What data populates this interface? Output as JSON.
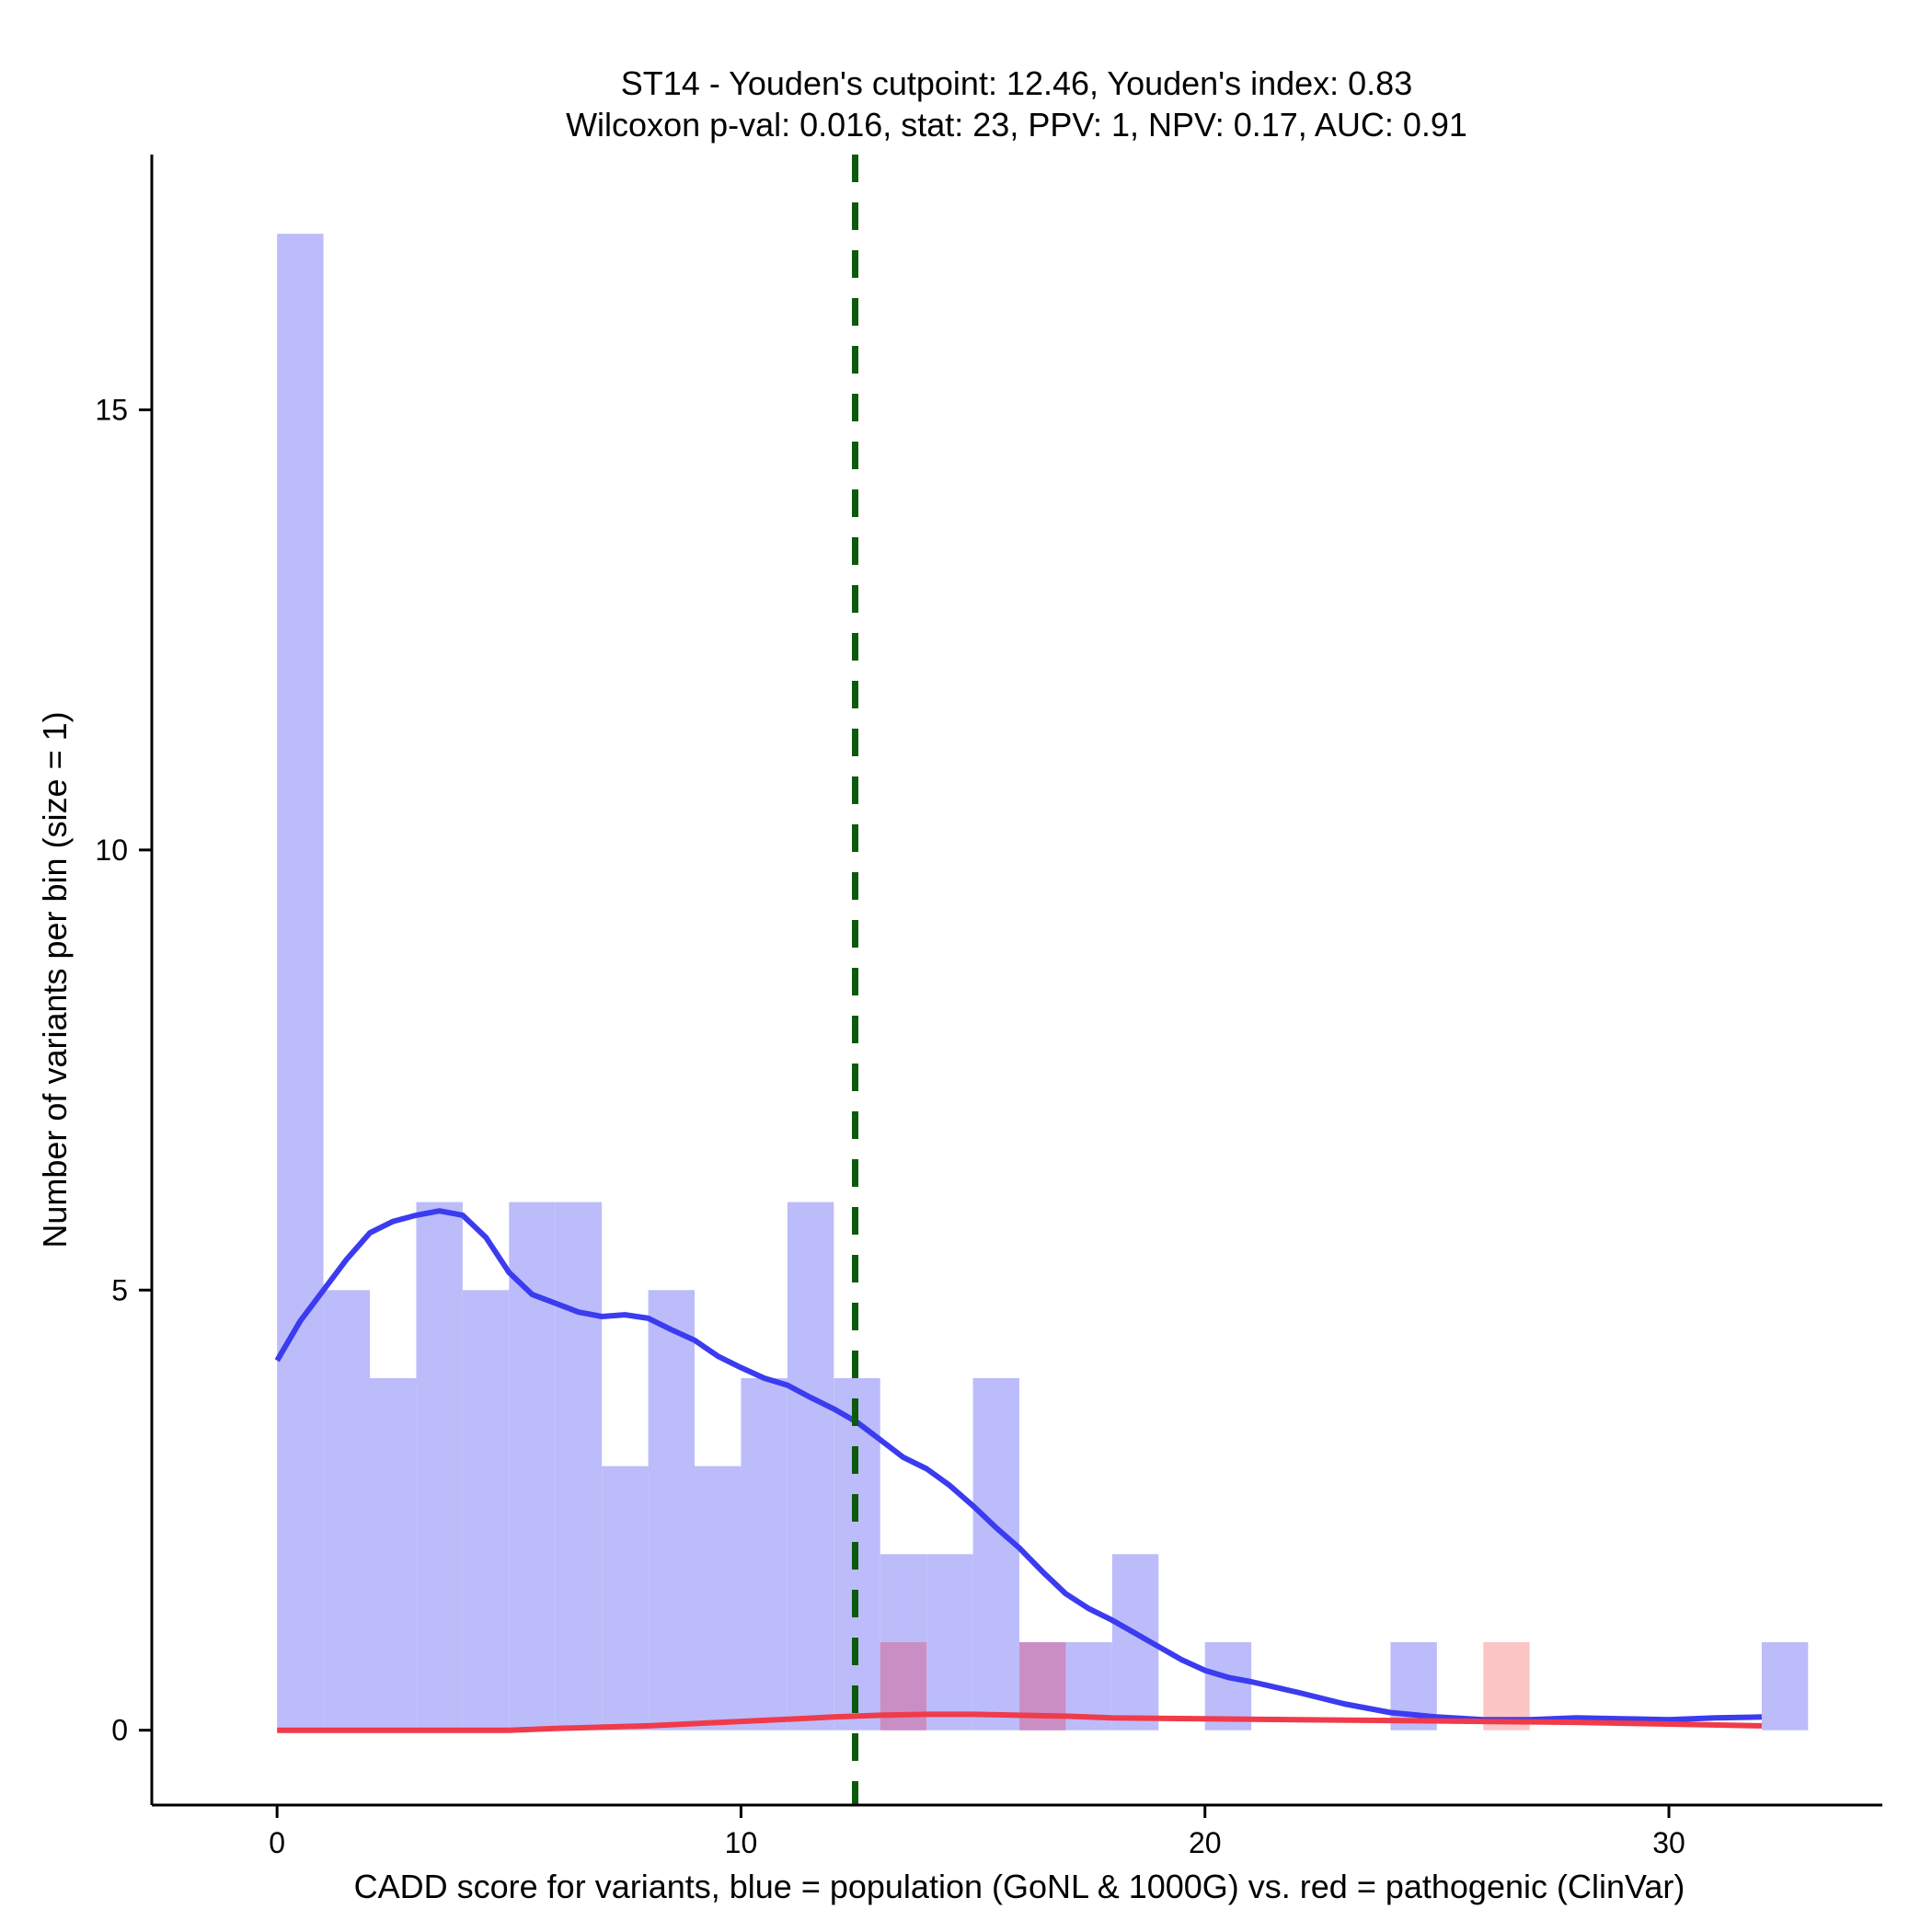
{
  "chart_data": {
    "type": "histogram",
    "title_line1": "ST14 - Youden's cutpoint: 12.46, Youden's index: 0.83",
    "title_line2": "Wilcoxon p-val: 0.016, stat: 23, PPV: 1, NPV: 0.17, AUC: 0.91",
    "xlabel": "CADD score for variants, blue = population (GoNL & 1000G) vs. red = pathogenic (ClinVar)",
    "ylabel": "Number of variants per bin (size = 1)",
    "xlim": [
      -2.7,
      34.6
    ],
    "ylim": [
      -0.85,
      17.9
    ],
    "x_ticks": [
      0,
      10,
      20,
      30
    ],
    "y_ticks": [
      0,
      5,
      10,
      15
    ],
    "bin_width": 1,
    "cutpoint": 12.46,
    "colors": {
      "population_bar": "#bcbcfb",
      "pathogenic_bar": "#fbbcbc",
      "population_line": "#3b3bf0",
      "pathogenic_line": "#f03b4b",
      "cutpoint_line": "#0d5a0d"
    },
    "series": [
      {
        "name": "population (GoNL & 1000G)",
        "bins": [
          {
            "start": 0,
            "count": 17
          },
          {
            "start": 1,
            "count": 5
          },
          {
            "start": 2,
            "count": 4
          },
          {
            "start": 3,
            "count": 6
          },
          {
            "start": 4,
            "count": 5
          },
          {
            "start": 5,
            "count": 6
          },
          {
            "start": 6,
            "count": 6
          },
          {
            "start": 7,
            "count": 3
          },
          {
            "start": 8,
            "count": 5
          },
          {
            "start": 9,
            "count": 3
          },
          {
            "start": 10,
            "count": 4
          },
          {
            "start": 11,
            "count": 6
          },
          {
            "start": 12,
            "count": 4
          },
          {
            "start": 13,
            "count": 2
          },
          {
            "start": 14,
            "count": 2
          },
          {
            "start": 15,
            "count": 4
          },
          {
            "start": 16,
            "count": 1
          },
          {
            "start": 17,
            "count": 1
          },
          {
            "start": 18,
            "count": 2
          },
          {
            "start": 20,
            "count": 1
          },
          {
            "start": 24,
            "count": 1
          },
          {
            "start": 32,
            "count": 1
          }
        ],
        "density_curve": [
          [
            0,
            4.2
          ],
          [
            0.5,
            4.65
          ],
          [
            1,
            5.0
          ],
          [
            1.5,
            5.35
          ],
          [
            2,
            5.65
          ],
          [
            2.5,
            5.78
          ],
          [
            3,
            5.85
          ],
          [
            3.5,
            5.9
          ],
          [
            4,
            5.85
          ],
          [
            4.5,
            5.6
          ],
          [
            5,
            5.2
          ],
          [
            5.5,
            4.95
          ],
          [
            6,
            4.85
          ],
          [
            6.5,
            4.75
          ],
          [
            7,
            4.7
          ],
          [
            7.5,
            4.72
          ],
          [
            8,
            4.68
          ],
          [
            8.5,
            4.55
          ],
          [
            9,
            4.43
          ],
          [
            9.5,
            4.25
          ],
          [
            10,
            4.12
          ],
          [
            10.5,
            4.0
          ],
          [
            11,
            3.92
          ],
          [
            11.5,
            3.78
          ],
          [
            12,
            3.65
          ],
          [
            12.5,
            3.5
          ],
          [
            13,
            3.3
          ],
          [
            13.5,
            3.1
          ],
          [
            14,
            2.97
          ],
          [
            14.5,
            2.78
          ],
          [
            15,
            2.55
          ],
          [
            15.5,
            2.3
          ],
          [
            16,
            2.07
          ],
          [
            16.5,
            1.8
          ],
          [
            17,
            1.55
          ],
          [
            17.5,
            1.38
          ],
          [
            18,
            1.25
          ],
          [
            18.5,
            1.1
          ],
          [
            19,
            0.95
          ],
          [
            19.5,
            0.8
          ],
          [
            20,
            0.68
          ],
          [
            20.5,
            0.6
          ],
          [
            21,
            0.55
          ],
          [
            22,
            0.43
          ],
          [
            23,
            0.3
          ],
          [
            24,
            0.2
          ],
          [
            25,
            0.15
          ],
          [
            26,
            0.12
          ],
          [
            27,
            0.12
          ],
          [
            28,
            0.14
          ],
          [
            29,
            0.13
          ],
          [
            30,
            0.12
          ],
          [
            31,
            0.14
          ],
          [
            32,
            0.15
          ]
        ]
      },
      {
        "name": "pathogenic (ClinVar)",
        "bins": [
          {
            "start": 13,
            "count": 1
          },
          {
            "start": 16,
            "count": 1
          },
          {
            "start": 26,
            "count": 1
          }
        ],
        "density_curve": [
          [
            0,
            0.0
          ],
          [
            2,
            0.0
          ],
          [
            4,
            0.0
          ],
          [
            5,
            0.0
          ],
          [
            6,
            0.02
          ],
          [
            8,
            0.05
          ],
          [
            10,
            0.1
          ],
          [
            12,
            0.15
          ],
          [
            13,
            0.17
          ],
          [
            14,
            0.18
          ],
          [
            15,
            0.18
          ],
          [
            16,
            0.17
          ],
          [
            17,
            0.16
          ],
          [
            18,
            0.14
          ],
          [
            20,
            0.13
          ],
          [
            22,
            0.12
          ],
          [
            24,
            0.11
          ],
          [
            26,
            0.1
          ],
          [
            28,
            0.09
          ],
          [
            30,
            0.07
          ],
          [
            32,
            0.05
          ]
        ]
      }
    ]
  }
}
